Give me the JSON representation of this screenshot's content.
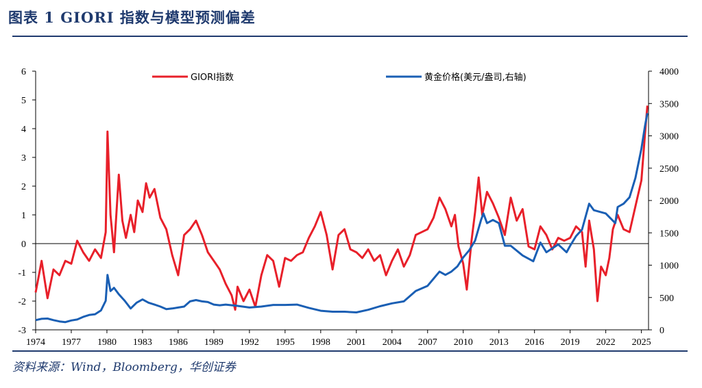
{
  "page": {
    "title": "图表 1 GIORI 指数与模型预测偏差",
    "source": "资料来源：Wind，Bloomberg，华创证券"
  },
  "colors": {
    "giori": "#e8202a",
    "gold": "#1a5fb4",
    "axis": "#000000",
    "header": "#1f3a6e"
  },
  "chart_data": {
    "type": "line",
    "title": "",
    "xlabel": "",
    "ylabel_left": "",
    "ylabel_right": "",
    "legend_placement": "top",
    "grid": false,
    "x_ticks": [
      1974,
      1977,
      1980,
      1983,
      1986,
      1989,
      1992,
      1995,
      1998,
      2001,
      2004,
      2007,
      2010,
      2013,
      2016,
      2019,
      2022,
      2025
    ],
    "y_left_ticks": [
      -3,
      -2,
      -1,
      0,
      1,
      2,
      3,
      4,
      5,
      6
    ],
    "y_right_ticks": [
      0,
      500,
      1000,
      1500,
      2000,
      2500,
      3000,
      3500,
      4000
    ],
    "xlim": [
      1974,
      2025.6
    ],
    "ylim_left": [
      -3,
      6
    ],
    "ylim_right": [
      0,
      4000
    ],
    "series": [
      {
        "name": "GIORI指数",
        "axis": "left",
        "x": [
          1974.0,
          1974.5,
          1975.0,
          1975.5,
          1976.0,
          1976.5,
          1977.0,
          1977.5,
          1978.0,
          1978.5,
          1979.0,
          1979.5,
          1979.9,
          1980.05,
          1980.3,
          1980.6,
          1981.0,
          1981.3,
          1981.6,
          1982.0,
          1982.3,
          1982.6,
          1983.0,
          1983.3,
          1983.6,
          1984.0,
          1984.5,
          1985.0,
          1985.5,
          1986.0,
          1986.5,
          1987.0,
          1987.5,
          1988.0,
          1988.5,
          1989.0,
          1989.5,
          1990.0,
          1990.5,
          1990.8,
          1991.0,
          1991.5,
          1992.0,
          1992.5,
          1993.0,
          1993.5,
          1994.0,
          1994.5,
          1995.0,
          1995.5,
          1996.0,
          1996.5,
          1997.0,
          1997.5,
          1998.0,
          1998.5,
          1999.0,
          1999.5,
          2000.0,
          2000.5,
          2001.0,
          2001.5,
          2002.0,
          2002.5,
          2003.0,
          2003.5,
          2004.0,
          2004.5,
          2005.0,
          2005.5,
          2006.0,
          2006.5,
          2007.0,
          2007.5,
          2008.0,
          2008.5,
          2009.0,
          2009.3,
          2009.6,
          2010.0,
          2010.3,
          2010.7,
          2011.0,
          2011.3,
          2011.6,
          2012.0,
          2012.5,
          2013.0,
          2013.5,
          2014.0,
          2014.5,
          2015.0,
          2015.5,
          2016.0,
          2016.5,
          2017.0,
          2017.5,
          2018.0,
          2018.5,
          2019.0,
          2019.5,
          2020.0,
          2020.3,
          2020.6,
          2021.0,
          2021.3,
          2021.6,
          2022.0,
          2022.3,
          2022.6,
          2023.0,
          2023.5,
          2024.0,
          2024.5,
          2025.0,
          2025.3,
          2025.5
        ],
        "values": [
          -1.7,
          -0.6,
          -1.9,
          -0.9,
          -1.1,
          -0.6,
          -0.7,
          0.1,
          -0.3,
          -0.6,
          -0.2,
          -0.5,
          0.4,
          3.9,
          1.0,
          -0.3,
          2.4,
          0.8,
          0.2,
          1.0,
          0.4,
          1.5,
          1.1,
          2.1,
          1.6,
          1.9,
          0.9,
          0.5,
          -0.4,
          -1.1,
          0.3,
          0.5,
          0.8,
          0.3,
          -0.3,
          -0.6,
          -0.9,
          -1.4,
          -1.8,
          -2.3,
          -1.5,
          -2.0,
          -1.6,
          -2.2,
          -1.1,
          -0.4,
          -0.6,
          -1.5,
          -0.5,
          -0.6,
          -0.4,
          -0.3,
          0.2,
          0.6,
          1.1,
          0.3,
          -0.9,
          0.3,
          0.5,
          -0.2,
          -0.3,
          -0.5,
          -0.2,
          -0.6,
          -0.4,
          -1.1,
          -0.6,
          -0.2,
          -0.8,
          -0.4,
          0.3,
          0.4,
          0.5,
          0.9,
          1.6,
          1.2,
          0.6,
          1.0,
          -0.1,
          -0.7,
          -1.6,
          0.1,
          1.1,
          2.3,
          1.0,
          1.8,
          1.4,
          0.9,
          0.3,
          1.6,
          0.8,
          1.2,
          -0.1,
          -0.2,
          0.6,
          0.3,
          -0.2,
          0.2,
          0.1,
          0.2,
          0.6,
          0.4,
          -0.8,
          0.8,
          -0.2,
          -2.0,
          -0.8,
          -1.1,
          -0.5,
          0.5,
          1.0,
          0.5,
          0.4,
          1.3,
          2.2,
          3.8,
          4.8
        ]
      },
      {
        "name": "黄金价格(美元/盎司,右轴)",
        "axis": "right",
        "x": [
          1974.0,
          1974.5,
          1975.0,
          1975.5,
          1976.0,
          1976.5,
          1977.0,
          1977.5,
          1978.0,
          1978.5,
          1979.0,
          1979.5,
          1979.9,
          1980.05,
          1980.3,
          1980.6,
          1981.0,
          1981.5,
          1982.0,
          1982.5,
          1983.0,
          1983.5,
          1984.0,
          1984.5,
          1985.0,
          1985.5,
          1986.0,
          1986.5,
          1987.0,
          1987.5,
          1988.0,
          1988.5,
          1989.0,
          1989.5,
          1990.0,
          1991.0,
          1992.0,
          1993.0,
          1994.0,
          1995.0,
          1996.0,
          1997.0,
          1998.0,
          1999.0,
          2000.0,
          2001.0,
          2002.0,
          2003.0,
          2004.0,
          2005.0,
          2006.0,
          2007.0,
          2008.0,
          2008.5,
          2009.0,
          2009.5,
          2010.0,
          2010.5,
          2011.0,
          2011.5,
          2011.7,
          2012.0,
          2012.5,
          2013.0,
          2013.5,
          2014.0,
          2015.0,
          2015.9,
          2016.5,
          2017.0,
          2018.0,
          2018.7,
          2019.0,
          2019.5,
          2020.0,
          2020.6,
          2021.0,
          2022.0,
          2022.8,
          2023.0,
          2023.5,
          2024.0,
          2024.5,
          2025.0,
          2025.3,
          2025.5
        ],
        "values": [
          150,
          170,
          175,
          150,
          130,
          120,
          145,
          160,
          200,
          230,
          240,
          300,
          450,
          850,
          600,
          650,
          550,
          450,
          330,
          420,
          470,
          420,
          390,
          360,
          320,
          330,
          345,
          360,
          440,
          460,
          440,
          430,
          390,
          380,
          390,
          370,
          345,
          360,
          385,
          385,
          390,
          340,
          295,
          280,
          280,
          270,
          310,
          365,
          410,
          440,
          600,
          680,
          900,
          850,
          900,
          980,
          1120,
          1230,
          1380,
          1700,
          1800,
          1650,
          1700,
          1650,
          1300,
          1300,
          1150,
          1060,
          1350,
          1200,
          1320,
          1200,
          1300,
          1450,
          1550,
          1950,
          1850,
          1800,
          1650,
          1900,
          1950,
          2050,
          2350,
          2800,
          3150,
          3350
        ]
      }
    ]
  }
}
